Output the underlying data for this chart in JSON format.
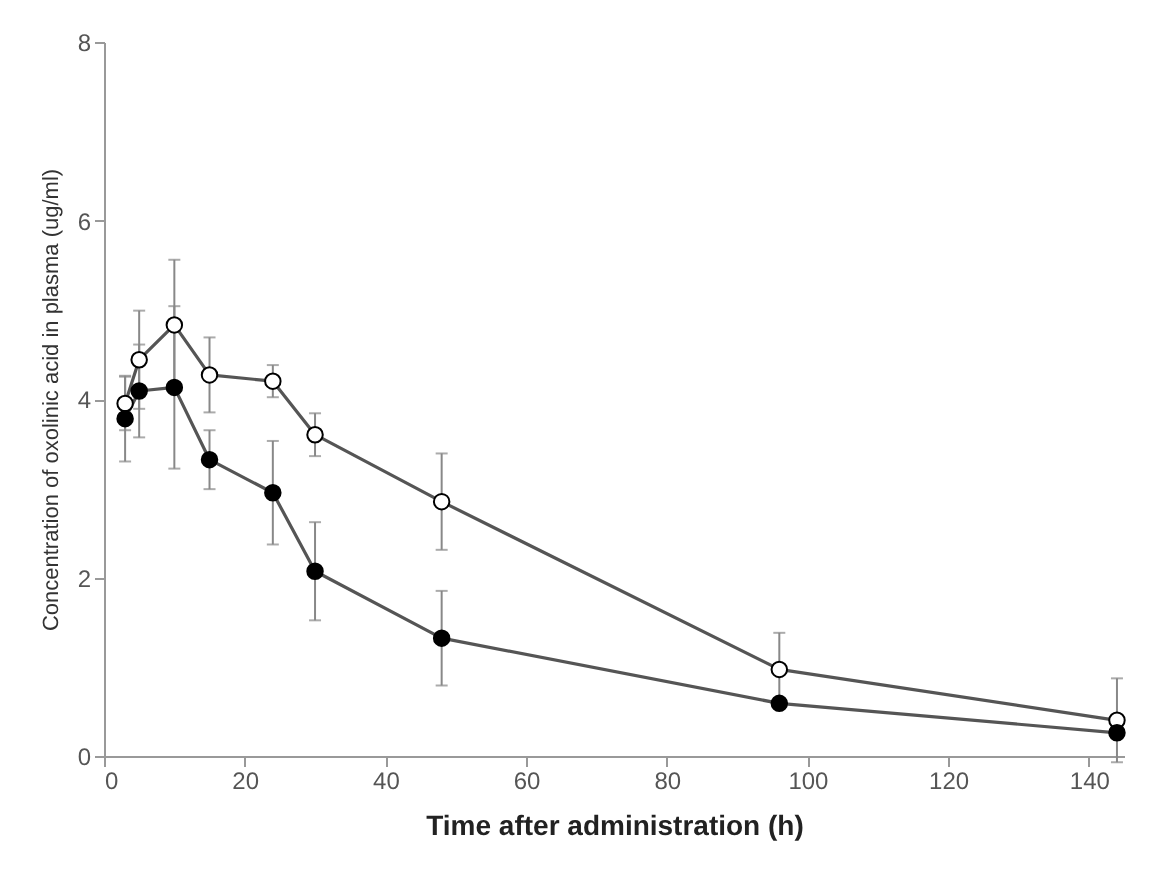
{
  "chart_data": {
    "type": "line",
    "xlabel": "Time after administration (h)",
    "ylabel": "Concentration of oxolinic acid in plasma (ug/ml)",
    "x": [
      3,
      5,
      10,
      15,
      24,
      30,
      48,
      96,
      144
    ],
    "xlim": [
      0,
      145
    ],
    "xticks": [
      0,
      20,
      40,
      60,
      80,
      100,
      120,
      140
    ],
    "ylim": [
      0,
      8
    ],
    "yticks": [
      0,
      2,
      4,
      6,
      8
    ],
    "grid": false,
    "legend": false,
    "marker": "circle",
    "line_style": "solid",
    "series": [
      {
        "color": "#ffffff",
        "values": [
          3.95,
          4.44,
          4.83,
          4.27,
          4.2,
          3.6,
          2.85,
          0.97,
          0.4
        ],
        "errors": [
          0.3,
          0.55,
          0.73,
          0.42,
          0.18,
          0.24,
          0.54,
          0.41,
          0.47
        ]
      },
      {
        "color": "#000000",
        "values": [
          3.78,
          4.09,
          4.13,
          3.32,
          2.95,
          2.07,
          1.32,
          0.59,
          0.26
        ],
        "errors": [
          0.48,
          0.52,
          0.91,
          0.33,
          0.58,
          0.55,
          0.53,
          null,
          null
        ]
      }
    ]
  }
}
